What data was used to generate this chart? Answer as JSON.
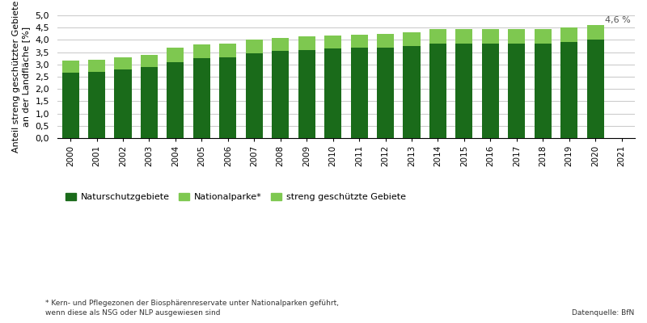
{
  "years": [
    2000,
    2001,
    2002,
    2003,
    2004,
    2005,
    2006,
    2007,
    2008,
    2009,
    2010,
    2011,
    2012,
    2013,
    2014,
    2015,
    2016,
    2017,
    2018,
    2019,
    2020
  ],
  "naturschutzgebiete": [
    2.65,
    2.7,
    2.8,
    2.9,
    3.1,
    3.25,
    3.3,
    3.45,
    3.55,
    3.6,
    3.65,
    3.7,
    3.7,
    3.75,
    3.85,
    3.85,
    3.85,
    3.85,
    3.85,
    3.9,
    4.0
  ],
  "nationalparke": [
    0.5,
    0.5,
    0.48,
    0.48,
    0.6,
    0.58,
    0.55,
    0.55,
    0.52,
    0.54,
    0.53,
    0.52,
    0.55,
    0.55,
    0.6,
    0.58,
    0.58,
    0.58,
    0.6,
    0.62,
    0.6
  ],
  "color_nsg": "#1a6b1a",
  "color_nlp": "#7ec850",
  "ylabel": "Anteil streng geschützter Gebiete\nan der Landfläche [%]",
  "ylim": [
    0,
    5.0
  ],
  "yticks": [
    0.0,
    0.5,
    1.0,
    1.5,
    2.0,
    2.5,
    3.0,
    3.5,
    4.0,
    4.5,
    5.0
  ],
  "annotation_text": "4,6 %",
  "legend_nsg": "Naturschutzgebiete",
  "legend_nlp": "Nationalparke*",
  "legend_total": "streng geschützte Gebiete",
  "footnote": "* Kern- und Pflegezonen der Biosphärenreservate unter Nationalparken geführt,\nwenn diese als NSG oder NLP ausgewiesen sind",
  "datasource": "Datenquelle: BfN",
  "background_color": "#ffffff",
  "grid_color": "#cccccc"
}
